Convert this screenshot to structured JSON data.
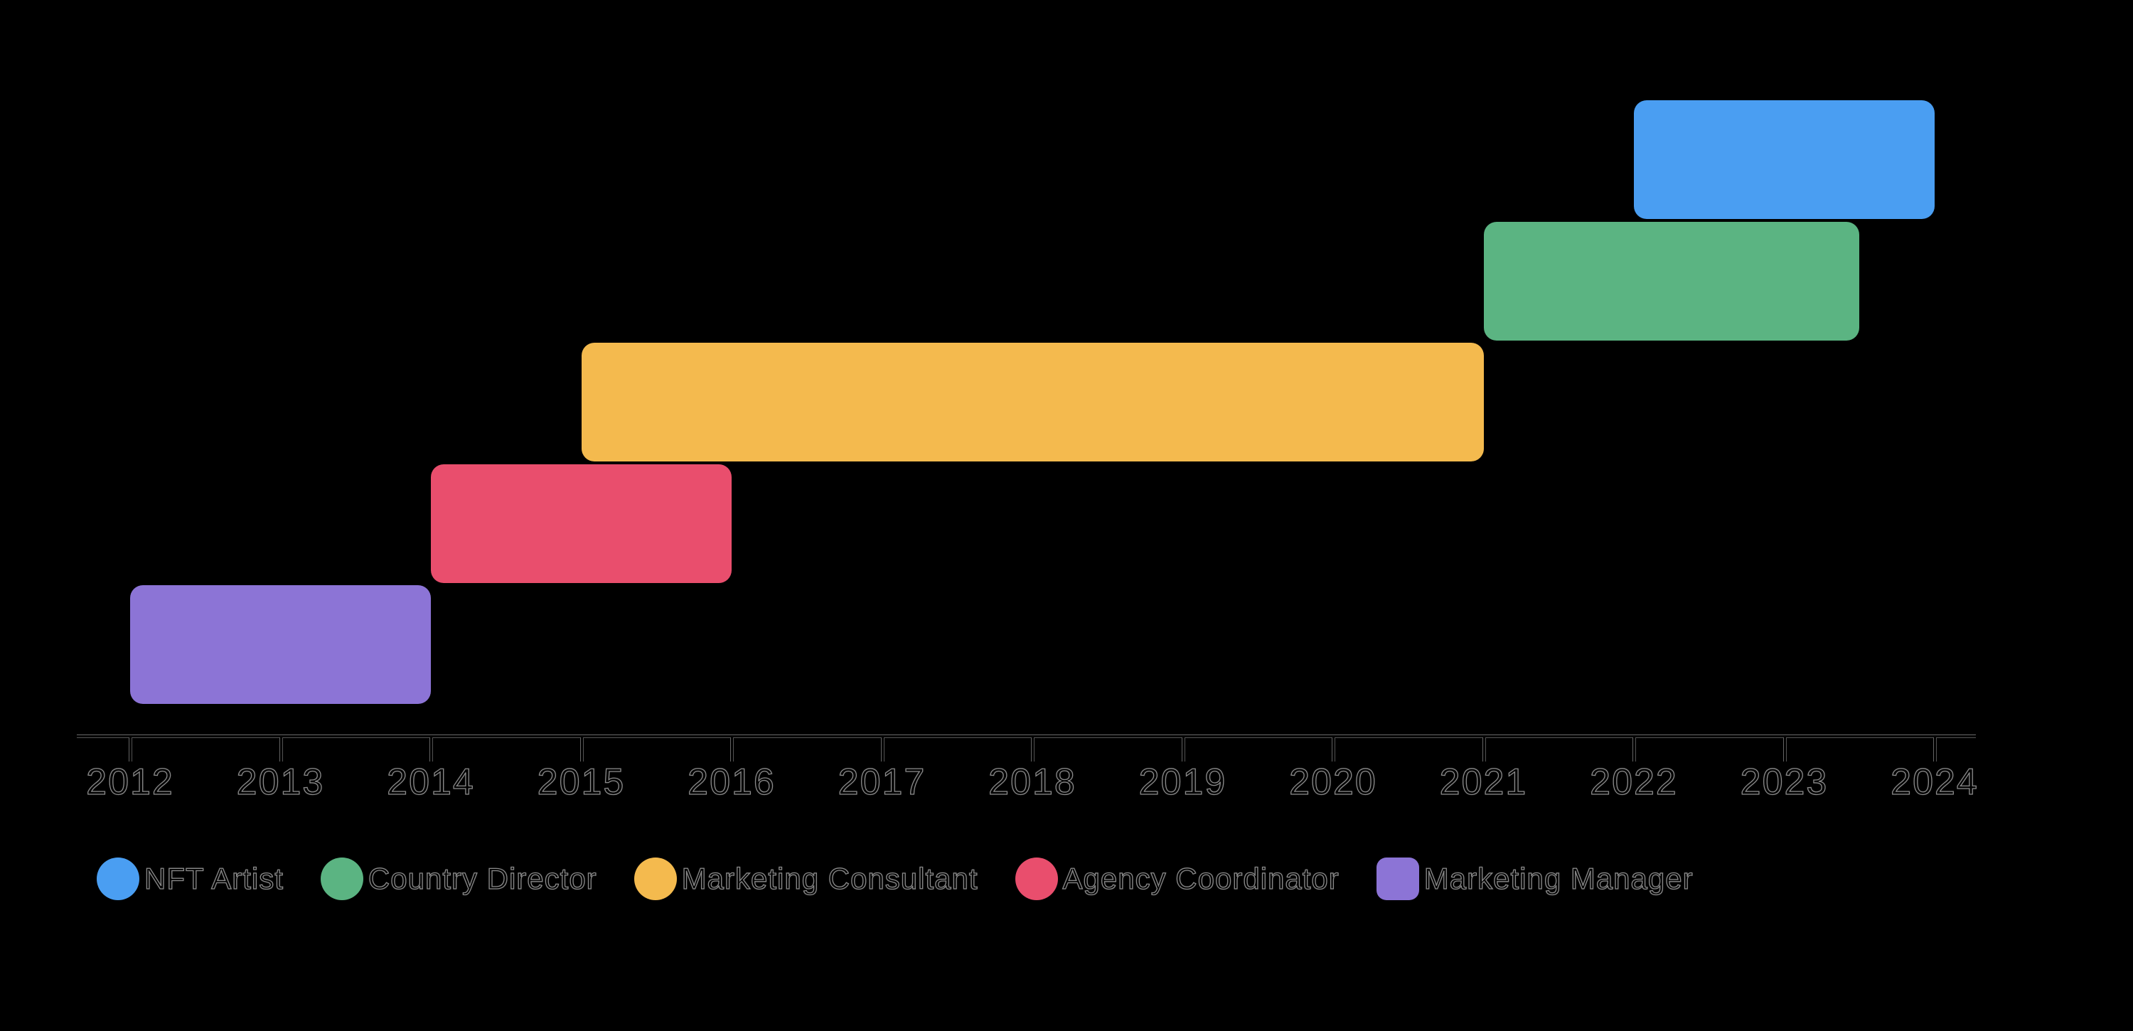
{
  "chart_data": {
    "type": "gantt",
    "title": "",
    "x_axis": {
      "min": 2012,
      "max": 2024,
      "tick_step": 1,
      "tick_labels": [
        "2012",
        "2013",
        "2014",
        "2015",
        "2016",
        "2017",
        "2018",
        "2019",
        "2020",
        "2021",
        "2022",
        "2023",
        "2024"
      ]
    },
    "bars": [
      {
        "name": "NFT Artist",
        "start": 2022,
        "end": 2024,
        "row": 0,
        "color": "#4a9ef2"
      },
      {
        "name": "Country Director",
        "start": 2021,
        "end": 2023.5,
        "row": 1,
        "color": "#5bb482"
      },
      {
        "name": "Marketing Consultant",
        "start": 2015,
        "end": 2021,
        "row": 2,
        "color": "#f4ba4e"
      },
      {
        "name": "Agency Coordinator",
        "start": 2014,
        "end": 2016,
        "row": 3,
        "color": "#e94e6d"
      },
      {
        "name": "Marketing Manager",
        "start": 2012,
        "end": 2014,
        "row": 4,
        "color": "#8c74d6"
      }
    ],
    "legend": [
      {
        "label": "NFT Artist",
        "color": "#4a9ef2",
        "marker": "circle"
      },
      {
        "label": "Country Director",
        "color": "#5bb482",
        "marker": "circle"
      },
      {
        "label": "Marketing Consultant",
        "color": "#f4ba4e",
        "marker": "circle"
      },
      {
        "label": "Agency Coordinator",
        "color": "#e94e6d",
        "marker": "circle"
      },
      {
        "label": "Marketing Manager",
        "color": "#8c74d6",
        "marker": "rounded-square"
      }
    ],
    "legend_position": "bottom-left",
    "grid": false,
    "colors": {
      "background": "#000000",
      "axis_core": "#000000",
      "axis_outline": "#6a6a6a",
      "label_fill": "#000000",
      "label_outline": "#8a8a8a"
    }
  }
}
